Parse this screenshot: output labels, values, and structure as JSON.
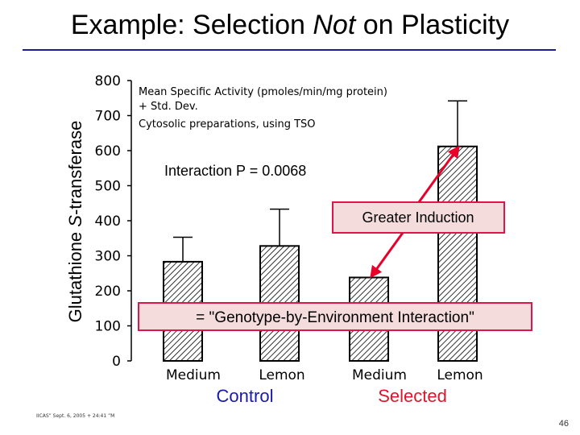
{
  "slide": {
    "title_prefix": "Example: Selection ",
    "title_emph": "Not",
    "title_suffix": " on Plasticity",
    "footer": "IICAS” Sept. 6, 2005 + 24:41 ”M",
    "page_number": "46"
  },
  "colors": {
    "title_rule": "#1a1a9a",
    "box_border": "#e0144a",
    "arrow": "#e8002a",
    "control_label": "#1a1aaa",
    "selected_label": "#e0142a",
    "box_fill": "#f4dcdc"
  },
  "chart_data": {
    "type": "bar",
    "title": "",
    "ylabel_prefix": "Glutathione ",
    "ylabel_emph": "S",
    "ylabel_suffix": "-transferase",
    "ylim": [
      0,
      800
    ],
    "yticks": [
      "0",
      "100",
      "200",
      "300",
      "400",
      "500",
      "600",
      "700",
      "800"
    ],
    "categories": [
      "Medium",
      "Lemon",
      "Medium",
      "Lemon"
    ],
    "groups": [
      "Control",
      "Selected"
    ],
    "values": [
      283,
      328,
      238,
      612
    ],
    "errors": [
      70,
      105,
      0,
      130
    ],
    "legend_lines": [
      "Mean Specific Activity (pmoles/min/mg protein)",
      "+ Std. Dev.",
      "Cytosolic preparations, using TSO"
    ],
    "annotations": {
      "interaction": "Interaction P = 0.0068",
      "greater_induction": "Greater Induction",
      "gxe": "= \"Genotype-by-Environment Interaction\""
    }
  }
}
